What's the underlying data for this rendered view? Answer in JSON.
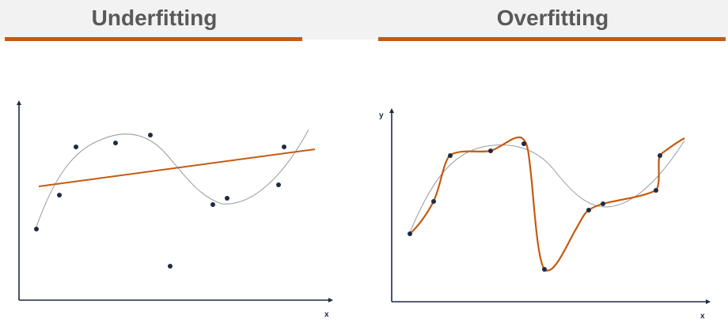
{
  "underfitting": {
    "title": "Underfitting",
    "x_axis_label": "x",
    "y_axis_label": ""
  },
  "overfitting": {
    "title": "Overfitting",
    "x_axis_label": "x",
    "y_axis_label": "y"
  },
  "colors": {
    "title_text": "#595959",
    "accent_rule": "#c55a11",
    "fit_curve": "#c55a11",
    "true_curve": "#9a9a9a",
    "data_point": "#1f2a44",
    "axis": "#1f2a44",
    "header_band": "#f2f2f2"
  }
}
